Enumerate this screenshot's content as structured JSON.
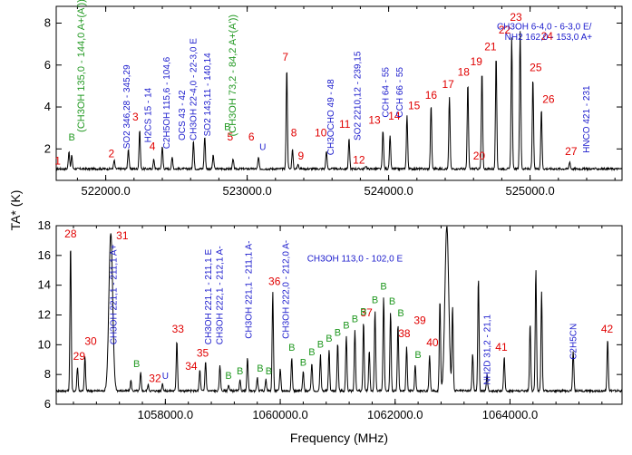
{
  "chart_data": [
    {
      "type": "line",
      "xlim": [
        521650,
        525650
      ],
      "ylim": [
        0.5,
        8.8
      ],
      "xticks": [
        522000,
        523000,
        524000,
        525000
      ],
      "xtick_labels": [
        "522000.0",
        "523000.0",
        "524000.0",
        "525000.0"
      ],
      "yticks": [
        2,
        4,
        6,
        8
      ],
      "ytick_labels": [
        "2",
        "4",
        "6",
        "8"
      ],
      "baseline": 1.05,
      "peaks": [
        {
          "x": 521740,
          "y": 1.9
        },
        {
          "x": 521760,
          "y": 1.7
        },
        {
          "x": 522060,
          "y": 1.45
        },
        {
          "x": 522160,
          "y": 2.0
        },
        {
          "x": 522240,
          "y": 2.9
        },
        {
          "x": 522340,
          "y": 1.5
        },
        {
          "x": 522400,
          "y": 2.1
        },
        {
          "x": 522470,
          "y": 1.6
        },
        {
          "x": 522620,
          "y": 2.4
        },
        {
          "x": 522700,
          "y": 2.6
        },
        {
          "x": 522760,
          "y": 1.7
        },
        {
          "x": 522900,
          "y": 1.5
        },
        {
          "x": 523080,
          "y": 1.6
        },
        {
          "x": 523280,
          "y": 5.9
        },
        {
          "x": 523320,
          "y": 2.0
        },
        {
          "x": 523360,
          "y": 1.3
        },
        {
          "x": 523560,
          "y": 1.9
        },
        {
          "x": 523720,
          "y": 2.5
        },
        {
          "x": 523840,
          "y": 1.2
        },
        {
          "x": 523960,
          "y": 2.9
        },
        {
          "x": 524010,
          "y": 2.6
        },
        {
          "x": 524130,
          "y": 3.6
        },
        {
          "x": 524300,
          "y": 4.1
        },
        {
          "x": 524430,
          "y": 4.5
        },
        {
          "x": 524560,
          "y": 5.1
        },
        {
          "x": 524660,
          "y": 5.7
        },
        {
          "x": 524760,
          "y": 6.4
        },
        {
          "x": 524870,
          "y": 7.3
        },
        {
          "x": 524930,
          "y": 7.6
        },
        {
          "x": 525020,
          "y": 5.4
        },
        {
          "x": 525080,
          "y": 3.9
        },
        {
          "x": 525280,
          "y": 1.4
        }
      ],
      "annotations": [
        {
          "label": "1",
          "x": 521660,
          "y": 1.25,
          "kind": "num"
        },
        {
          "label": "2",
          "x": 522040,
          "y": 1.6,
          "kind": "num"
        },
        {
          "label": "3",
          "x": 522210,
          "y": 3.35,
          "kind": "num"
        },
        {
          "label": "4",
          "x": 522330,
          "y": 1.95,
          "kind": "num"
        },
        {
          "label": "5",
          "x": 522880,
          "y": 2.4,
          "kind": "num"
        },
        {
          "label": "6",
          "x": 523030,
          "y": 2.4,
          "kind": "num"
        },
        {
          "label": "U",
          "x": 523110,
          "y": 1.95,
          "kind": "mol"
        },
        {
          "label": "7",
          "x": 523270,
          "y": 6.2,
          "kind": "num"
        },
        {
          "label": "8",
          "x": 523330,
          "y": 2.6,
          "kind": "num"
        },
        {
          "label": "9",
          "x": 523380,
          "y": 1.5,
          "kind": "num"
        },
        {
          "label": "10",
          "x": 523520,
          "y": 2.6,
          "kind": "num"
        },
        {
          "label": "11",
          "x": 523690,
          "y": 3.0,
          "kind": "num"
        },
        {
          "label": "12",
          "x": 523790,
          "y": 1.3,
          "kind": "num"
        },
        {
          "label": "13",
          "x": 523900,
          "y": 3.2,
          "kind": "num"
        },
        {
          "label": "14",
          "x": 524040,
          "y": 3.4,
          "kind": "num"
        },
        {
          "label": "15",
          "x": 524180,
          "y": 3.9,
          "kind": "num"
        },
        {
          "label": "16",
          "x": 524300,
          "y": 4.4,
          "kind": "num"
        },
        {
          "label": "17",
          "x": 524420,
          "y": 4.9,
          "kind": "num"
        },
        {
          "label": "18",
          "x": 524530,
          "y": 5.5,
          "kind": "num"
        },
        {
          "label": "19",
          "x": 524620,
          "y": 6.0,
          "kind": "num"
        },
        {
          "label": "20",
          "x": 524640,
          "y": 1.5,
          "kind": "num"
        },
        {
          "label": "21",
          "x": 524720,
          "y": 6.7,
          "kind": "num"
        },
        {
          "label": "22",
          "x": 524820,
          "y": 7.5,
          "kind": "num"
        },
        {
          "label": "23",
          "x": 524900,
          "y": 8.1,
          "kind": "num"
        },
        {
          "label": "24",
          "x": 525120,
          "y": 7.2,
          "kind": "num"
        },
        {
          "label": "25",
          "x": 525040,
          "y": 5.7,
          "kind": "num"
        },
        {
          "label": "26",
          "x": 525130,
          "y": 4.2,
          "kind": "num"
        },
        {
          "label": "27",
          "x": 525290,
          "y": 1.7,
          "kind": "num"
        },
        {
          "label": "B",
          "x": 521760,
          "y": 2.4,
          "kind": "b"
        },
        {
          "label": "B",
          "x": 522860,
          "y": 2.9,
          "kind": "b"
        },
        {
          "label": "SO2 346,28 - 345,29",
          "x": 522170,
          "y": 2.0,
          "kind": "mol_v"
        },
        {
          "label": "H2CS 15 - 14",
          "x": 522320,
          "y": 2.3,
          "kind": "mol_v"
        },
        {
          "label": "C2H5OH 115,6 - 104,6",
          "x": 522450,
          "y": 2.0,
          "kind": "mol_v"
        },
        {
          "label": "OCS 43 - 42",
          "x": 522560,
          "y": 2.4,
          "kind": "mol_v"
        },
        {
          "label": "CH3OH 22-4,0 - 22-3,0 E",
          "x": 522640,
          "y": 2.4,
          "kind": "mol_v"
        },
        {
          "label": "SO2 143,11 - 140,14",
          "x": 522740,
          "y": 2.6,
          "kind": "mol_v"
        },
        {
          "label": "(CH3OH 135,0 - 144,0 A+(A'))",
          "x": 521850,
          "y": 2.8,
          "kind": "b_v"
        },
        {
          "label": "(CH3OH 73,2 - 84,2 A+(A'))",
          "x": 522920,
          "y": 2.6,
          "kind": "b_v"
        },
        {
          "label": "CH3OCHO 49 - 48",
          "x": 523610,
          "y": 1.7,
          "kind": "mol_v"
        },
        {
          "label": "SO2 2210,12 - 239,15",
          "x": 523800,
          "y": 2.4,
          "kind": "mol_v"
        },
        {
          "label": "CCH 64 - 55",
          "x": 524000,
          "y": 3.5,
          "kind": "mol_v"
        },
        {
          "label": "CCH 66 - 55",
          "x": 524100,
          "y": 3.5,
          "kind": "mol_v"
        },
        {
          "label": "CH3OH 6-4,0 - 6-3,0 E/",
          "x": 525100,
          "y": 7.7,
          "kind": "mol"
        },
        {
          "label": "NH2 162,0 - 153,0 A+",
          "x": 525130,
          "y": 7.2,
          "kind": "mol"
        },
        {
          "label": "HNCO 421 - 231",
          "x": 525420,
          "y": 1.8,
          "kind": "mol_v"
        }
      ]
    },
    {
      "type": "line",
      "xlim": [
        1056100,
        1065950
      ],
      "ylim": [
        6,
        18
      ],
      "xticks": [
        1058000,
        1060000,
        1062000,
        1064000
      ],
      "xtick_labels": [
        "1058000.0",
        "1060000.0",
        "1062000.0",
        "1064000.0"
      ],
      "yticks": [
        6,
        8,
        10,
        12,
        14,
        16,
        18
      ],
      "ytick_labels": [
        "6",
        "8",
        "10",
        "12",
        "14",
        "16",
        "18"
      ],
      "xlabel": "Frequency (MHz)",
      "ylabel": "TA* (K)",
      "baseline": 6.9,
      "peaks": [
        {
          "x": 1056350,
          "y": 16.8
        },
        {
          "x": 1056470,
          "y": 8.5
        },
        {
          "x": 1056600,
          "y": 9.2
        },
        {
          "x": 1057050,
          "y": 17.5
        },
        {
          "x": 1057400,
          "y": 7.6
        },
        {
          "x": 1057570,
          "y": 8.1
        },
        {
          "x": 1057700,
          "y": 7.3
        },
        {
          "x": 1057950,
          "y": 7.4
        },
        {
          "x": 1058200,
          "y": 10.3
        },
        {
          "x": 1058600,
          "y": 8.3
        },
        {
          "x": 1058700,
          "y": 8.9
        },
        {
          "x": 1058950,
          "y": 8.6
        },
        {
          "x": 1059100,
          "y": 7.3
        },
        {
          "x": 1059300,
          "y": 7.6
        },
        {
          "x": 1059430,
          "y": 9.1
        },
        {
          "x": 1059600,
          "y": 7.8
        },
        {
          "x": 1059750,
          "y": 7.7
        },
        {
          "x": 1059870,
          "y": 13.6
        },
        {
          "x": 1060000,
          "y": 8.4
        },
        {
          "x": 1060200,
          "y": 9.1
        },
        {
          "x": 1060400,
          "y": 8.2
        },
        {
          "x": 1060550,
          "y": 8.8
        },
        {
          "x": 1060700,
          "y": 9.3
        },
        {
          "x": 1060850,
          "y": 9.7
        },
        {
          "x": 1061000,
          "y": 10.1
        },
        {
          "x": 1061150,
          "y": 10.6
        },
        {
          "x": 1061300,
          "y": 11.0
        },
        {
          "x": 1061450,
          "y": 11.5
        },
        {
          "x": 1061550,
          "y": 9.6
        },
        {
          "x": 1061650,
          "y": 12.3
        },
        {
          "x": 1061800,
          "y": 13.2
        },
        {
          "x": 1061920,
          "y": 12.2
        },
        {
          "x": 1062050,
          "y": 11.4
        },
        {
          "x": 1062200,
          "y": 9.8
        },
        {
          "x": 1062350,
          "y": 8.6
        },
        {
          "x": 1062600,
          "y": 9.3
        },
        {
          "x": 1062780,
          "y": 13.0
        },
        {
          "x": 1062900,
          "y": 18.0
        },
        {
          "x": 1063000,
          "y": 12.5
        },
        {
          "x": 1063350,
          "y": 9.4
        },
        {
          "x": 1063450,
          "y": 14.5
        },
        {
          "x": 1063600,
          "y": 8.0
        },
        {
          "x": 1063900,
          "y": 9.2
        },
        {
          "x": 1064350,
          "y": 11.4
        },
        {
          "x": 1064450,
          "y": 15.1
        },
        {
          "x": 1064550,
          "y": 13.6
        },
        {
          "x": 1065100,
          "y": 9.6
        },
        {
          "x": 1065700,
          "y": 10.4
        }
      ],
      "annotations": [
        {
          "label": "28",
          "x": 1056350,
          "y": 17.2,
          "kind": "num"
        },
        {
          "label": "29",
          "x": 1056500,
          "y": 9.0,
          "kind": "num"
        },
        {
          "label": "30",
          "x": 1056700,
          "y": 10.0,
          "kind": "num"
        },
        {
          "label": "31",
          "x": 1057250,
          "y": 17.1,
          "kind": "num"
        },
        {
          "label": "32",
          "x": 1057820,
          "y": 7.5,
          "kind": "num"
        },
        {
          "label": "U",
          "x": 1058000,
          "y": 7.7,
          "kind": "mol"
        },
        {
          "label": "33",
          "x": 1058220,
          "y": 10.8,
          "kind": "num"
        },
        {
          "label": "34",
          "x": 1058450,
          "y": 8.3,
          "kind": "num"
        },
        {
          "label": "35",
          "x": 1058650,
          "y": 9.2,
          "kind": "num"
        },
        {
          "label": "36",
          "x": 1059900,
          "y": 14.0,
          "kind": "num"
        },
        {
          "label": "37",
          "x": 1061500,
          "y": 11.9,
          "kind": "num"
        },
        {
          "label": "38",
          "x": 1062160,
          "y": 10.5,
          "kind": "num"
        },
        {
          "label": "39",
          "x": 1062430,
          "y": 11.4,
          "kind": "num"
        },
        {
          "label": "40",
          "x": 1062650,
          "y": 9.9,
          "kind": "num"
        },
        {
          "label": "41",
          "x": 1063850,
          "y": 9.6,
          "kind": "num"
        },
        {
          "label": "42",
          "x": 1065690,
          "y": 10.8,
          "kind": "num"
        },
        {
          "label": "CH3OH 113,0 - 102,0 E",
          "x": 1061300,
          "y": 15.6,
          "kind": "mol"
        },
        {
          "label": "CH3OH 221,1 - 211,1 A+",
          "x": 1057150,
          "y": 10.0,
          "kind": "mol_v"
        },
        {
          "label": "CH3OH 221,1 - 211,1 E",
          "x": 1058800,
          "y": 10.0,
          "kind": "mol_v"
        },
        {
          "label": "CH3OH 222,1 - 212,1 A-",
          "x": 1059000,
          "y": 10.0,
          "kind": "mol_v"
        },
        {
          "label": "CH3OH 221,1 - 211,1 A-",
          "x": 1059500,
          "y": 10.4,
          "kind": "mol_v"
        },
        {
          "label": "CH3OH 222,0 - 212,0 A-",
          "x": 1060150,
          "y": 10.4,
          "kind": "mol_v"
        },
        {
          "label": "NH2D 31,2 - 21,1",
          "x": 1063650,
          "y": 7.3,
          "kind": "mol_v"
        },
        {
          "label": "C2H5CN",
          "x": 1065150,
          "y": 9.0,
          "kind": "mol_v"
        },
        {
          "label": "B",
          "x": 1057500,
          "y": 8.5,
          "kind": "b"
        },
        {
          "label": "B",
          "x": 1059100,
          "y": 7.7,
          "kind": "b"
        },
        {
          "label": "B",
          "x": 1059300,
          "y": 8.0,
          "kind": "b"
        },
        {
          "label": "B",
          "x": 1059650,
          "y": 8.2,
          "kind": "b"
        },
        {
          "label": "B",
          "x": 1059800,
          "y": 8.0,
          "kind": "b"
        },
        {
          "label": "B",
          "x": 1060200,
          "y": 9.6,
          "kind": "b"
        },
        {
          "label": "B",
          "x": 1060400,
          "y": 8.6,
          "kind": "b"
        },
        {
          "label": "B",
          "x": 1060550,
          "y": 9.3,
          "kind": "b"
        },
        {
          "label": "B",
          "x": 1060700,
          "y": 9.8,
          "kind": "b"
        },
        {
          "label": "B",
          "x": 1060850,
          "y": 10.2,
          "kind": "b"
        },
        {
          "label": "B",
          "x": 1061000,
          "y": 10.6,
          "kind": "b"
        },
        {
          "label": "B",
          "x": 1061150,
          "y": 11.1,
          "kind": "b"
        },
        {
          "label": "B",
          "x": 1061300,
          "y": 11.5,
          "kind": "b"
        },
        {
          "label": "B",
          "x": 1061450,
          "y": 12.0,
          "kind": "b"
        },
        {
          "label": "B",
          "x": 1061650,
          "y": 12.8,
          "kind": "b"
        },
        {
          "label": "B",
          "x": 1061800,
          "y": 13.7,
          "kind": "b"
        },
        {
          "label": "B",
          "x": 1061950,
          "y": 12.7,
          "kind": "b"
        },
        {
          "label": "B",
          "x": 1062100,
          "y": 11.9,
          "kind": "b"
        },
        {
          "label": "B",
          "x": 1062400,
          "y": 9.1,
          "kind": "b"
        }
      ]
    }
  ]
}
